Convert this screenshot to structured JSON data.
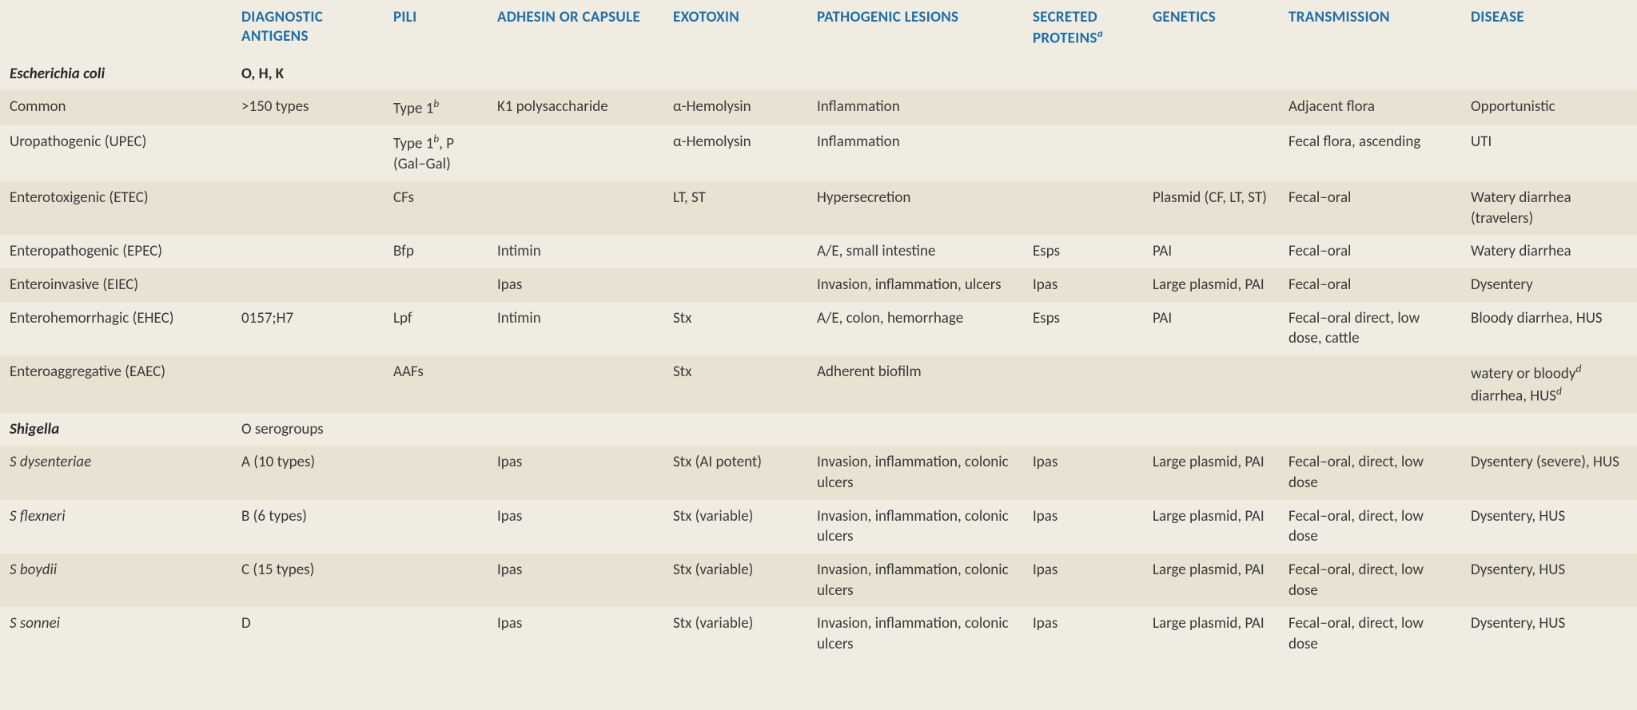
{
  "colors": {
    "header_text": "#1f6fa8",
    "body_text": "#3a3a3a",
    "row_a": "#f0ece1",
    "row_b": "#e8e2d2"
  },
  "headers": {
    "c0": "",
    "c1": "DIAGNOSTIC ANTIGENS",
    "c2": "PILI",
    "c3": "ADHESIN OR CAPSULE",
    "c4": "EXOTOXIN",
    "c5": "PATHOGENIC LESIONS",
    "c6_pre": "SECRETED PROTEINS",
    "c6_sup": "a",
    "c7": "GENETICS",
    "c8": "TRANSMISSION",
    "c9": "DISEASE"
  },
  "sections": [
    {
      "name": "Escherichia coli",
      "antigens": "O, H, K",
      "stripe": "a",
      "rows": [
        {
          "stripe": "b",
          "c0": "Common",
          "c1": ">150 types",
          "c2_pre": "Type 1",
          "c2_sup": "b",
          "c2_post": "",
          "c3": "K1 polysaccharide",
          "c4": "α-Hemolysin",
          "c5": "Inflammation",
          "c6": "",
          "c7": "",
          "c8": "Adjacent flora",
          "c9": "Opportunistic"
        },
        {
          "stripe": "a",
          "c0": "Uropathogenic (UPEC)",
          "c1": "",
          "c2_pre": "Type 1",
          "c2_sup": "b",
          "c2_post": ", P (Gal–Gal)",
          "c3": "",
          "c4": "α-Hemolysin",
          "c5": "Inflammation",
          "c6": "",
          "c7": "",
          "c8": "Fecal flora, ascending",
          "c9": "UTI"
        },
        {
          "stripe": "b",
          "c0": "Enterotoxigenic (ETEC)",
          "c1": "",
          "c2": "CFs",
          "c3": "",
          "c4": "LT, ST",
          "c5": "Hypersecretion",
          "c6": "",
          "c7": "Plasmid (CF, LT, ST)",
          "c8": "Fecal–oral",
          "c9": "Watery diarrhea (travelers)"
        },
        {
          "stripe": "a",
          "c0": "Enteropathogenic (EPEC)",
          "c1": "",
          "c2": "Bfp",
          "c3": "Intimin",
          "c4": "",
          "c5": "A/E, small intestine",
          "c6": "Esps",
          "c7": "PAI",
          "c8": "Fecal–oral",
          "c9": "Watery diarrhea"
        },
        {
          "stripe": "b",
          "c0": "Enteroinvasive (EIEC)",
          "c1": "",
          "c2": "",
          "c3": "Ipas",
          "c4": "",
          "c5": "Invasion, inflammation, ulcers",
          "c6": "Ipas",
          "c7": "Large plasmid, PAI",
          "c8": "Fecal–oral",
          "c9": "Dysentery"
        },
        {
          "stripe": "a",
          "c0": "Enterohemorrhagic (EHEC)",
          "c1": "0157;H7",
          "c2": "Lpf",
          "c3": "Intimin",
          "c4": "Stx",
          "c5": "A/E, colon, hemorrhage",
          "c6": "Esps",
          "c7": "PAI",
          "c8": "Fecal–oral direct, low dose, cattle",
          "c9": "Bloody diarrhea, HUS"
        },
        {
          "stripe": "b",
          "c0": "Enteroaggregative (EAEC)",
          "c1": "",
          "c2": "AAFs",
          "c3": "",
          "c4": "Stx",
          "c5": "Adherent biofilm",
          "c6": "",
          "c7": "",
          "c8": "",
          "c9_html": "watery or bloody<sup class=\"sup-norm\"><i>d</i></sup> diarrhea, HUS<sup class=\"sup-norm\"><i>d</i></sup>"
        }
      ]
    },
    {
      "name": "Shigella",
      "antigens": "O serogroups",
      "antigens_bold": false,
      "stripe": "a",
      "rows": [
        {
          "stripe": "b",
          "c0_it": "S dysenteriae",
          "c1": "A (10 types)",
          "c2": "",
          "c3": "Ipas",
          "c4": "Stx (AI potent)",
          "c5": "Invasion, inflammation, colonic ulcers",
          "c6": "Ipas",
          "c7": "Large plasmid, PAI",
          "c8": "Fecal–oral, direct, low dose",
          "c9": "Dysentery (severe), HUS"
        },
        {
          "stripe": "a",
          "c0_it": "S flexneri",
          "c1": "B (6 types)",
          "c2": "",
          "c3": "Ipas",
          "c4": "Stx (variable)",
          "c5": "Invasion, inflammation, colonic ulcers",
          "c6": "Ipas",
          "c7": "Large plasmid, PAI",
          "c8": "Fecal–oral, direct, low dose",
          "c9": "Dysentery, HUS"
        },
        {
          "stripe": "b",
          "c0_it": "S boydii",
          "c1": "C (15 types)",
          "c2": "",
          "c3": "Ipas",
          "c4": "Stx (variable)",
          "c5": "Invasion, inflammation, colonic ulcers",
          "c6": "Ipas",
          "c7": "Large plasmid, PAI",
          "c8": "Fecal–oral, direct, low dose",
          "c9": "Dysentery, HUS"
        },
        {
          "stripe": "a",
          "c0_it": "S sonnei",
          "c1": "D",
          "c2": "",
          "c3": "Ipas",
          "c4": "Stx (variable)",
          "c5": "Invasion, inflammation, colonic ulcers",
          "c6": "Ipas",
          "c7": "Large plasmid, PAI",
          "c8": "Fecal–oral, direct, low dose",
          "c9": "Dysentery, HUS"
        }
      ]
    }
  ]
}
